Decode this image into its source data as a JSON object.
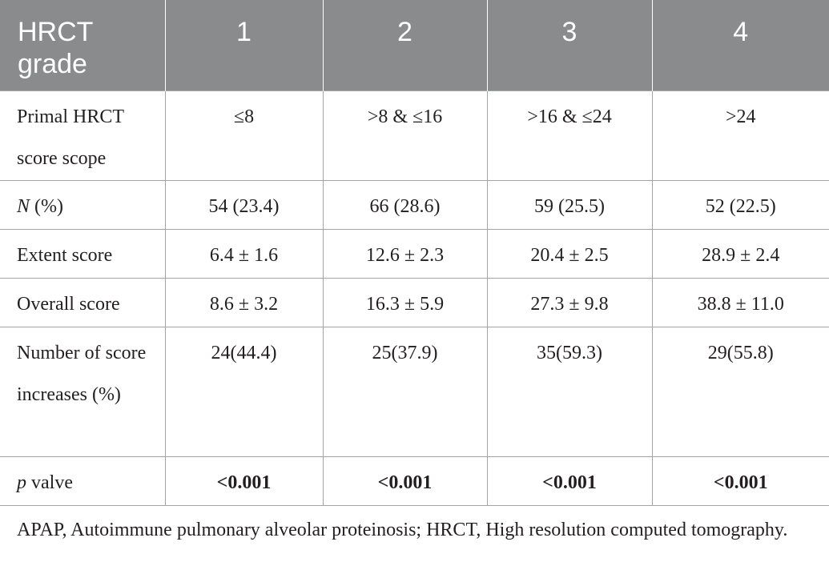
{
  "table": {
    "header": {
      "label": "HRCT grade",
      "grades": [
        "1",
        "2",
        "3",
        "4"
      ]
    },
    "rows": {
      "primal": {
        "label": "Primal HRCT score scope",
        "values": [
          "≤8",
          ">8 & ≤16",
          ">16 & ≤24",
          ">24"
        ]
      },
      "n": {
        "label_italic": "N",
        "label_rest": " (%)",
        "values": [
          "54 (23.4)",
          "66 (28.6)",
          "59 (25.5)",
          "52 (22.5)"
        ]
      },
      "extent": {
        "label": "Extent score",
        "values": [
          "6.4 ± 1.6",
          "12.6 ± 2.3",
          "20.4 ± 2.5",
          "28.9 ± 2.4"
        ]
      },
      "overall": {
        "label": "Overall score",
        "values": [
          "8.6 ± 3.2",
          "16.3 ± 5.9",
          "27.3 ± 9.8",
          "38.8 ± 11.0"
        ]
      },
      "number": {
        "label": "Number of score increases (%)",
        "values": [
          "24(44.4)",
          "25(37.9)",
          "35(59.3)",
          "29(55.8)"
        ]
      },
      "p": {
        "label_italic": "p",
        "label_rest": " valve",
        "values": [
          "<0.001",
          "<0.001",
          "<0.001",
          "<0.001"
        ]
      }
    }
  },
  "footnote": "APAP, Autoimmune pulmonary alveolar proteinosis; HRCT, High resolution computed tomography.",
  "colors": {
    "header_bg": "#8a8b8d",
    "header_text": "#ffffff",
    "border": "#a3a4a6",
    "text": "#231f20"
  }
}
